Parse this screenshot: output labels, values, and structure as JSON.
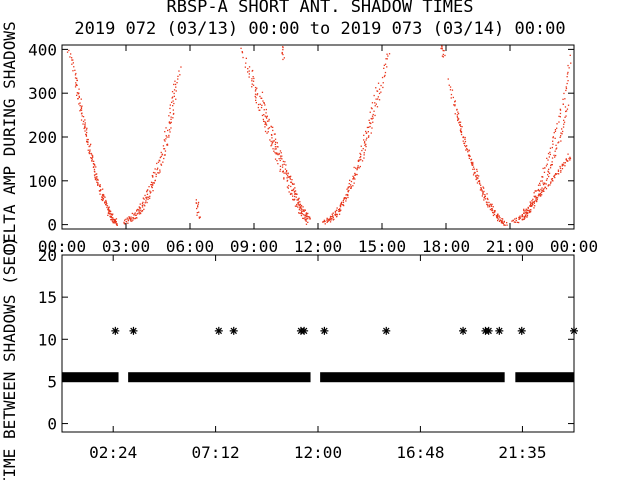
{
  "title_line1": "RBSP-A SHORT ANT. SHADOW TIMES",
  "title_line2": "2019 072 (03/13) 00:00 to 2019 073 (03/14) 00:00",
  "colors": {
    "points": "#e8361c",
    "axes": "#000000",
    "markers": "#000000"
  },
  "chart_data": [
    {
      "type": "scatter",
      "ylabel": "DELTA AMP DURING SHADOWS",
      "ylim": [
        -10,
        410
      ],
      "xlim": [
        0,
        24
      ],
      "yticks": [
        "0",
        "100",
        "200",
        "300",
        "400"
      ],
      "yticks_values": [
        0,
        100,
        200,
        300,
        400
      ],
      "xticks": [
        "00:00",
        "03:00",
        "06:00",
        "09:00",
        "12:00",
        "15:00",
        "18:00",
        "21:00",
        "00:00"
      ],
      "xticks_values": [
        0,
        3,
        6,
        9,
        12,
        15,
        18,
        21,
        24
      ],
      "grid": false,
      "series": [
        {
          "color": "#e8361c",
          "curves": [
            {
              "x": [
                0.3,
                0.6,
                0.9,
                1.2,
                1.5,
                1.8,
                2.1,
                2.4,
                2.6
              ],
              "y": [
                400,
                340,
                260,
                190,
                130,
                80,
                40,
                12,
                2
              ]
            },
            {
              "x": [
                0.6,
                0.9,
                1.2,
                1.5,
                1.8,
                2.1,
                2.3,
                2.5
              ],
              "y": [
                330,
                250,
                180,
                120,
                70,
                35,
                15,
                5
              ]
            },
            {
              "x": [
                2.9,
                3.3,
                3.7,
                4.1,
                4.5,
                4.9,
                5.2,
                5.5
              ],
              "y": [
                5,
                15,
                35,
                70,
                120,
                190,
                270,
                370
              ]
            },
            {
              "x": [
                3.0,
                3.4,
                3.8,
                4.2,
                4.6,
                5.0,
                5.3
              ],
              "y": [
                10,
                25,
                55,
                100,
                160,
                240,
                330
              ]
            },
            {
              "x": [
                6.3,
                6.4
              ],
              "y": [
                60,
                10
              ]
            },
            {
              "x": [
                8.4,
                8.9,
                9.4,
                9.9,
                10.4,
                10.8,
                11.2,
                11.5
              ],
              "y": [
                400,
                320,
                240,
                170,
                110,
                60,
                25,
                5
              ]
            },
            {
              "x": [
                8.8,
                9.3,
                9.8,
                10.3,
                10.8,
                11.2,
                11.6
              ],
              "y": [
                360,
                280,
                200,
                140,
                80,
                40,
                10
              ]
            },
            {
              "x": [
                9.3,
                9.8,
                10.3,
                10.8,
                11.2,
                11.6
              ],
              "y": [
                300,
                220,
                150,
                90,
                40,
                15
              ]
            },
            {
              "x": [
                10.2,
                10.4
              ],
              "y": [
                420,
                380
              ]
            },
            {
              "x": [
                12.2,
                12.6,
                13.0,
                13.4,
                13.8,
                14.2,
                14.6,
                15.0,
                15.3
              ],
              "y": [
                5,
                15,
                35,
                70,
                120,
                180,
                250,
                330,
                400
              ]
            },
            {
              "x": [
                12.4,
                12.8,
                13.2,
                13.6,
                14.0,
                14.4,
                14.8
              ],
              "y": [
                10,
                28,
                60,
                110,
                170,
                240,
                330
              ]
            },
            {
              "x": [
                17.7,
                17.9
              ],
              "y": [
                420,
                380
              ]
            },
            {
              "x": [
                18.1,
                18.5,
                18.9,
                19.3,
                19.7,
                20.1,
                20.5,
                20.8
              ],
              "y": [
                330,
                250,
                180,
                120,
                70,
                35,
                12,
                2
              ]
            },
            {
              "x": [
                18.4,
                18.8,
                19.2,
                19.6,
                20.0,
                20.4,
                20.7
              ],
              "y": [
                270,
                200,
                140,
                90,
                50,
                20,
                5
              ]
            },
            {
              "x": [
                21.1,
                21.5,
                21.9,
                22.3,
                22.7,
                23.1,
                23.5,
                23.8
              ],
              "y": [
                5,
                20,
                45,
                85,
                140,
                210,
                290,
                390
              ]
            },
            {
              "x": [
                21.4,
                21.8,
                22.2,
                22.6,
                23.0,
                23.4,
                23.7
              ],
              "y": [
                10,
                30,
                60,
                100,
                150,
                210,
                280
              ]
            },
            {
              "x": [
                21.6,
                22.0,
                22.4,
                22.8,
                23.2,
                23.5,
                23.8
              ],
              "y": [
                15,
                40,
                70,
                95,
                120,
                140,
                160
              ]
            }
          ]
        }
      ]
    },
    {
      "type": "scatter",
      "ylabel": "TIME BETWEEN SHADOWS (SEC)",
      "ylim": [
        -1,
        20
      ],
      "xlim": [
        0,
        24
      ],
      "yticks": [
        "0",
        "5",
        "10",
        "15",
        "20"
      ],
      "yticks_values": [
        0,
        5,
        10,
        15,
        20
      ],
      "xticks": [
        "02:24",
        "07:12",
        "12:00",
        "16:48",
        "21:35"
      ],
      "xticks_values": [
        2.4,
        7.2,
        12.0,
        16.8,
        21.583
      ],
      "grid": false,
      "marker": "*",
      "series": [
        {
          "color": "#000000",
          "x": [
            2.5,
            3.35,
            7.35,
            8.05,
            11.2,
            11.35,
            12.3,
            15.2,
            18.8,
            19.85,
            20.0,
            20.5,
            21.55,
            24.0
          ],
          "y": [
            11,
            11,
            11,
            11,
            11,
            11,
            11,
            11,
            11,
            11,
            11,
            11,
            11,
            11
          ],
          "band": {
            "y": 5.5,
            "segments": [
              [
                0.0,
                2.65
              ],
              [
                3.1,
                11.65
              ],
              [
                12.1,
                20.75
              ],
              [
                21.25,
                24.0
              ]
            ]
          }
        }
      ]
    }
  ]
}
